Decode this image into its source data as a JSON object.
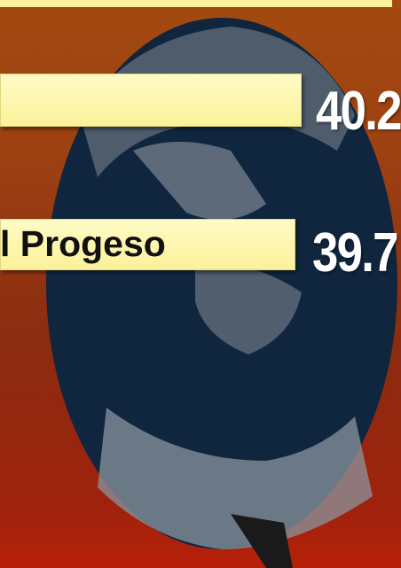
{
  "rows": [
    {
      "value": "40.2"
    },
    {
      "label": "l Progeso",
      "value": "39.7"
    }
  ]
}
